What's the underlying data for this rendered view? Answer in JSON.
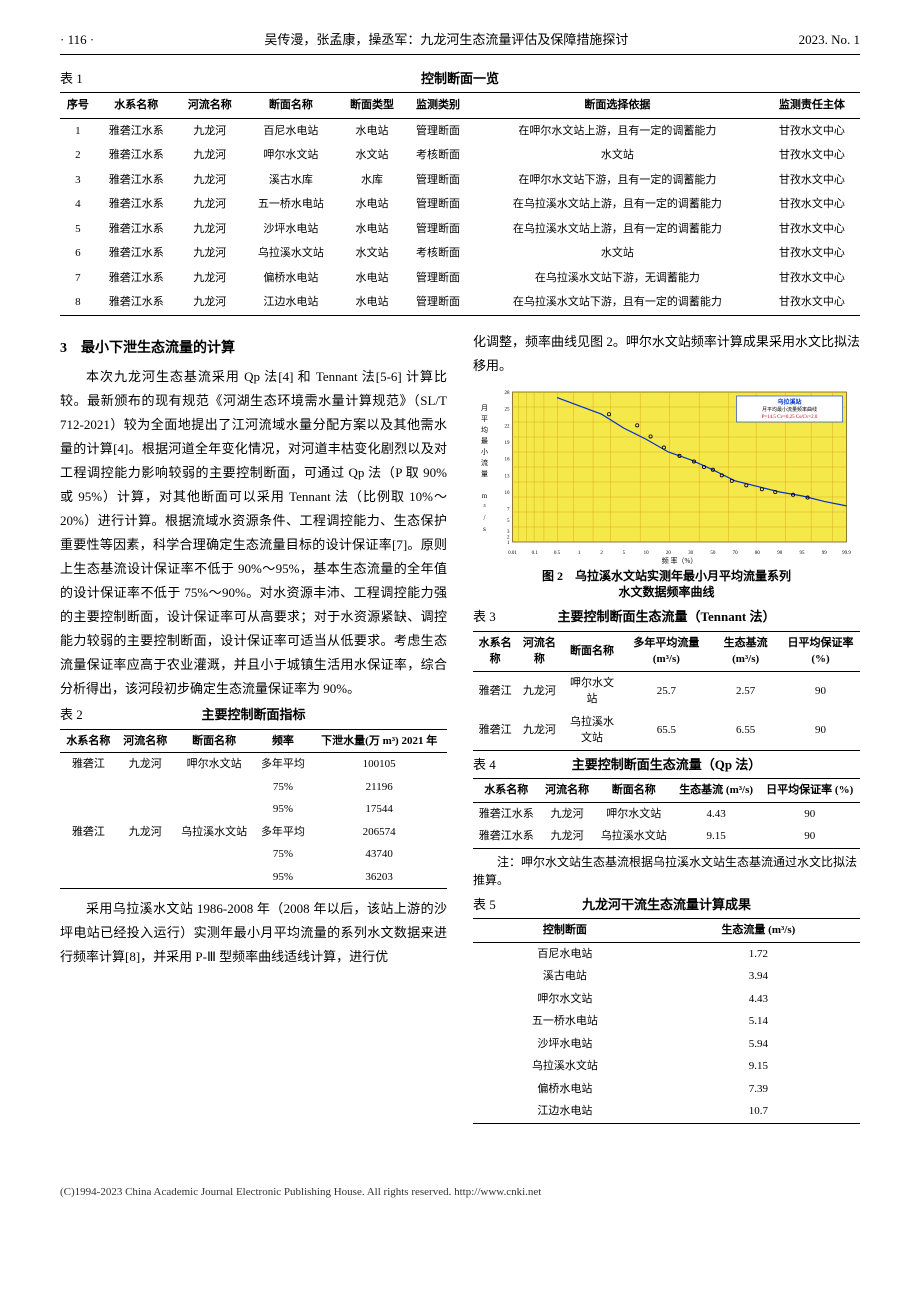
{
  "header": {
    "page": "· 116 ·",
    "title": "吴传漫，张孟康，操丞军：九龙河生态流量评估及保障措施探讨",
    "issue": "2023. No. 1"
  },
  "table1": {
    "label": "表 1",
    "title": "控制断面一览",
    "headers": [
      "序号",
      "水系名称",
      "河流名称",
      "断面名称",
      "断面类型",
      "监测类别",
      "断面选择依据",
      "监测责任主体"
    ],
    "rows": [
      [
        "1",
        "雅砻江水系",
        "九龙河",
        "百尼水电站",
        "水电站",
        "管理断面",
        "在呷尔水文站上游，且有一定的调蓄能力",
        "甘孜水文中心"
      ],
      [
        "2",
        "雅砻江水系",
        "九龙河",
        "呷尔水文站",
        "水文站",
        "考核断面",
        "水文站",
        "甘孜水文中心"
      ],
      [
        "3",
        "雅砻江水系",
        "九龙河",
        "溪古水库",
        "水库",
        "管理断面",
        "在呷尔水文站下游，且有一定的调蓄能力",
        "甘孜水文中心"
      ],
      [
        "4",
        "雅砻江水系",
        "九龙河",
        "五一桥水电站",
        "水电站",
        "管理断面",
        "在乌拉溪水文站上游，且有一定的调蓄能力",
        "甘孜水文中心"
      ],
      [
        "5",
        "雅砻江水系",
        "九龙河",
        "沙坪水电站",
        "水电站",
        "管理断面",
        "在乌拉溪水文站上游，且有一定的调蓄能力",
        "甘孜水文中心"
      ],
      [
        "6",
        "雅砻江水系",
        "九龙河",
        "乌拉溪水文站",
        "水文站",
        "考核断面",
        "水文站",
        "甘孜水文中心"
      ],
      [
        "7",
        "雅砻江水系",
        "九龙河",
        "偏桥水电站",
        "水电站",
        "管理断面",
        "在乌拉溪水文站下游，无调蓄能力",
        "甘孜水文中心"
      ],
      [
        "8",
        "雅砻江水系",
        "九龙河",
        "江边水电站",
        "水电站",
        "管理断面",
        "在乌拉溪水文站下游，且有一定的调蓄能力",
        "甘孜水文中心"
      ]
    ]
  },
  "sec3": {
    "title": "3　最小下泄生态流量的计算"
  },
  "para1": "本次九龙河生态基流采用 Qp 法[4] 和 Tennant 法[5-6] 计算比较。最新颁布的现有规范《河湖生态环境需水量计算规范》（SL/T 712-2021）较为全面地提出了江河流域水量分配方案以及其他需水量的计算[4]。根据河道全年变化情况，对河道丰枯变化剧烈以及对工程调控能力影响较弱的主要控制断面，可通过 Qp 法（P 取 90% 或 95%）计算，对其他断面可以采用 Tennant 法（比例取 10%～20%）进行计算。根据流域水资源条件、工程调控能力、生态保护重要性等因素，科学合理确定生态流量目标的设计保证率[7]。原则上生态基流设计保证率不低于 90%～95%，基本生态流量的全年值的设计保证率不低于 75%～90%。对水资源丰沛、工程调控能力强的主要控制断面，设计保证率可从高要求；对于水资源紧缺、调控能力较弱的主要控制断面，设计保证率可适当从低要求。考虑生态流量保证率应高于农业灌溉，并且小于城镇生活用水保证率，综合分析得出，该河段初步确定生态流量保证率为 90%。",
  "table2": {
    "label": "表 2",
    "title": "主要控制断面指标",
    "headers": [
      "水系名称",
      "河流名称",
      "断面名称",
      "频率",
      "下泄水量(万 m³) 2021 年"
    ],
    "rows": [
      [
        "雅砻江",
        "九龙河",
        "呷尔水文站",
        "多年平均",
        "100105"
      ],
      [
        "",
        "",
        "",
        "75%",
        "21196"
      ],
      [
        "",
        "",
        "",
        "95%",
        "17544"
      ],
      [
        "雅砻江",
        "九龙河",
        "乌拉溪水文站",
        "多年平均",
        "206574"
      ],
      [
        "",
        "",
        "",
        "75%",
        "43740"
      ],
      [
        "",
        "",
        "",
        "95%",
        "36203"
      ]
    ]
  },
  "para2": "采用乌拉溪水文站 1986-2008 年（2008 年以后，该站上游的沙坪电站已经投入运行）实测年最小月平均流量的系列水文数据来进行频率计算[8]，并采用 P-Ⅲ 型频率曲线适线计算，进行优",
  "para3": "化调整，频率曲线见图 2。呷尔水文站频率计算成果采用水文比拟法移用。",
  "figure2": {
    "caption1": "图 2　乌拉溪水文站实测年最小月平均流量系列",
    "caption2": "水文数据频率曲线",
    "bg_color": "#f5e84a",
    "grid_color": "#d4a017",
    "curve_color": "#0033cc",
    "marker_color": "#000000",
    "legend_title": "乌拉溪站",
    "legend_sub": "月平均最小流量频率曲线",
    "legend_params": "P=14.5 Cv=0.25 Cs/Cv=2.0",
    "xlabel": "频 率（%）",
    "ylabel": "月平均最小流量 m³/s",
    "xticks": [
      "0.01",
      "0.1",
      "0.5",
      "1",
      "2",
      "5",
      "10",
      "20",
      "30",
      "50",
      "70",
      "80",
      "90",
      "95",
      "99",
      "99.9"
    ],
    "yticks": [
      1,
      2,
      3,
      5,
      7,
      10,
      13,
      16,
      19,
      22,
      25,
      28
    ],
    "data_points": [
      {
        "p": 3,
        "q": 24
      },
      {
        "p": 8,
        "q": 22
      },
      {
        "p": 12,
        "q": 20
      },
      {
        "p": 18,
        "q": 18
      },
      {
        "p": 25,
        "q": 16.5
      },
      {
        "p": 33,
        "q": 15.5
      },
      {
        "p": 42,
        "q": 14.5
      },
      {
        "p": 50,
        "q": 14
      },
      {
        "p": 58,
        "q": 13
      },
      {
        "p": 67,
        "q": 12
      },
      {
        "p": 75,
        "q": 11.2
      },
      {
        "p": 82,
        "q": 10.5
      },
      {
        "p": 88,
        "q": 10
      },
      {
        "p": 93,
        "q": 9.5
      },
      {
        "p": 96,
        "q": 9
      }
    ]
  },
  "table3": {
    "label": "表 3",
    "title": "主要控制断面生态流量（Tennant 法）",
    "headers": [
      "水系名称",
      "河流名称",
      "断面名称",
      "多年平均流量 (m³/s)",
      "生态基流 (m³/s)",
      "日平均保证率 (%)"
    ],
    "rows": [
      [
        "雅砻江",
        "九龙河",
        "呷尔水文站",
        "25.7",
        "2.57",
        "90"
      ],
      [
        "雅砻江",
        "九龙河",
        "乌拉溪水文站",
        "65.5",
        "6.55",
        "90"
      ]
    ]
  },
  "table4": {
    "label": "表 4",
    "title": "主要控制断面生态流量（Qp 法）",
    "headers": [
      "水系名称",
      "河流名称",
      "断面名称",
      "生态基流 (m³/s)",
      "日平均保证率 (%)"
    ],
    "rows": [
      [
        "雅砻江水系",
        "九龙河",
        "呷尔水文站",
        "4.43",
        "90"
      ],
      [
        "雅砻江水系",
        "九龙河",
        "乌拉溪水文站",
        "9.15",
        "90"
      ]
    ]
  },
  "note4": "注：呷尔水文站生态基流根据乌拉溪水文站生态基流通过水文比拟法推算。",
  "table5": {
    "label": "表 5",
    "title": "九龙河干流生态流量计算成果",
    "headers": [
      "控制断面",
      "生态流量 (m³/s)"
    ],
    "rows": [
      [
        "百尼水电站",
        "1.72"
      ],
      [
        "溪古电站",
        "3.94"
      ],
      [
        "呷尔水文站",
        "4.43"
      ],
      [
        "五一桥水电站",
        "5.14"
      ],
      [
        "沙坪水电站",
        "5.94"
      ],
      [
        "乌拉溪水文站",
        "9.15"
      ],
      [
        "偏桥水电站",
        "7.39"
      ],
      [
        "江边水电站",
        "10.7"
      ]
    ]
  },
  "footer": "(C)1994-2023 China Academic Journal Electronic Publishing House. All rights reserved.    http://www.cnki.net"
}
